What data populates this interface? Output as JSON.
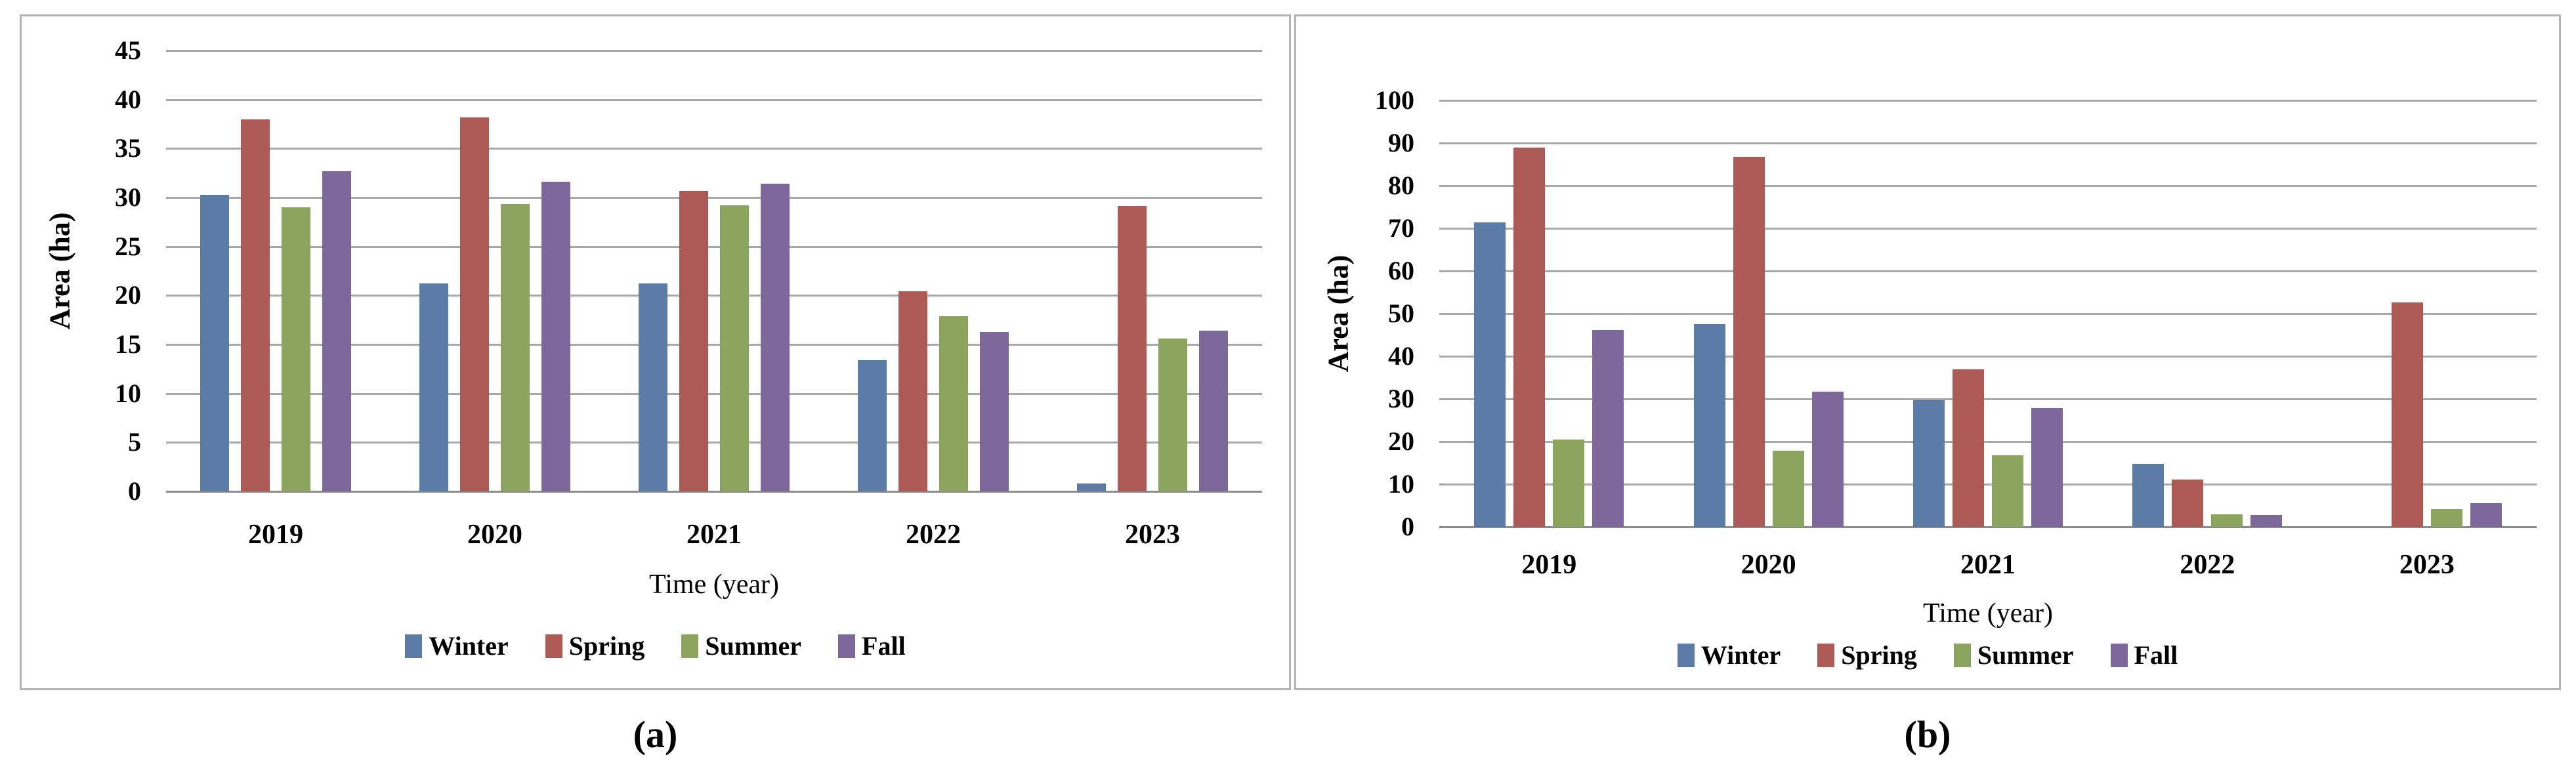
{
  "chart_data": [
    {
      "type": "bar",
      "panel": "a",
      "caption": "(a)",
      "title": "",
      "xlabel": "Time (year)",
      "ylabel": "Area (ha)",
      "ylim": [
        0,
        45
      ],
      "ystep": 5,
      "yticks": [
        45,
        40,
        35,
        30,
        25,
        20,
        15,
        10,
        5,
        0
      ],
      "categories": [
        "2019",
        "2020",
        "2021",
        "2022",
        "2023"
      ],
      "series": [
        {
          "name": "Winter",
          "color": "#5b7ca6",
          "values": [
            30.3,
            21.2,
            21.2,
            13.4,
            0.8
          ]
        },
        {
          "name": "Spring",
          "color": "#ad5a57",
          "values": [
            38.0,
            38.2,
            30.7,
            20.4,
            29.1
          ]
        },
        {
          "name": "Summer",
          "color": "#8ca55e",
          "values": [
            29.0,
            29.3,
            29.2,
            17.9,
            15.6
          ]
        },
        {
          "name": "Fall",
          "color": "#7c689b",
          "values": [
            32.7,
            31.6,
            31.4,
            16.3,
            16.4
          ]
        }
      ],
      "legend_position": "bottom",
      "grid": "horizontal",
      "gridline_color": "#a8a8a8",
      "axis_line_color": "#8a8a8a"
    },
    {
      "type": "bar",
      "panel": "b",
      "caption": "(b)",
      "title": "",
      "xlabel": "Time (year)",
      "ylabel": "Area (ha)",
      "ylim": [
        0,
        100
      ],
      "ystep": 10,
      "yticks": [
        100,
        90,
        80,
        70,
        60,
        50,
        40,
        30,
        20,
        10,
        0
      ],
      "categories": [
        "2019",
        "2020",
        "2021",
        "2022",
        "2023"
      ],
      "series": [
        {
          "name": "Winter",
          "color": "#5b7ca6",
          "values": [
            71.4,
            47.5,
            29.7,
            14.7,
            0
          ]
        },
        {
          "name": "Spring",
          "color": "#ad5a57",
          "values": [
            88.9,
            86.8,
            37.0,
            11.1,
            52.6
          ]
        },
        {
          "name": "Summer",
          "color": "#8ca55e",
          "values": [
            20.4,
            17.9,
            16.8,
            3.0,
            4.2
          ]
        },
        {
          "name": "Fall",
          "color": "#7c689b",
          "values": [
            46.2,
            31.7,
            27.9,
            2.7,
            5.5
          ]
        }
      ],
      "legend_position": "bottom",
      "grid": "horizontal",
      "gridline_color": "#a8a8a8",
      "axis_line_color": "#8a8a8a"
    }
  ]
}
